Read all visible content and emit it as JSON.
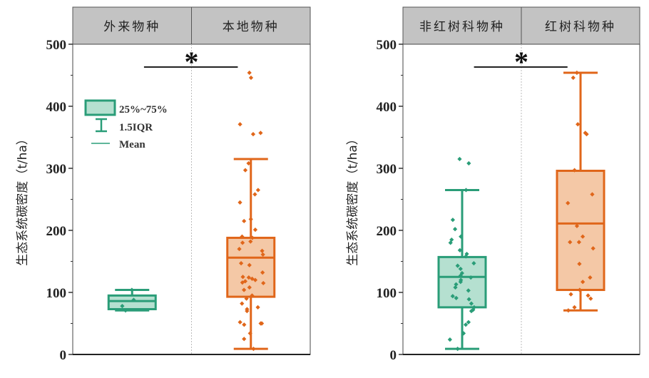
{
  "chart_data": [
    {
      "type": "box",
      "ylabel": "生态系统碳密度（t/ha）",
      "ylim": [
        0,
        500
      ],
      "yticks": [
        "0",
        "100",
        "200",
        "300",
        "400",
        "500"
      ],
      "categories": [
        "外来物种",
        "本地物种"
      ],
      "significance": "*",
      "legend": {
        "box": "25%~75%",
        "whisker": "1.5IQR",
        "mean": "Mean",
        "placement": "top-left"
      },
      "series": [
        {
          "name": "外来物种",
          "color": "#2a9d78",
          "fill": "#b5e0d0",
          "whisker_low": 71,
          "q1": 73,
          "median": 86,
          "q3": 95,
          "whisker_high": 104,
          "points": [
            104,
            88,
            78,
            71
          ]
        },
        {
          "name": "本地物种",
          "color": "#e0661a",
          "fill": "#f4c8a6",
          "whisker_low": 9,
          "q1": 93,
          "median": 156,
          "q3": 188,
          "whisker_high": 315,
          "points": [
            454,
            446,
            371,
            357,
            355,
            308,
            297,
            265,
            258,
            245,
            218,
            215,
            201,
            190,
            188,
            182,
            180,
            170,
            167,
            161,
            147,
            144,
            132,
            125,
            124,
            122,
            120,
            118,
            116,
            115,
            108,
            104,
            95,
            90,
            82,
            76,
            73,
            70,
            52,
            50,
            48,
            50,
            34,
            25,
            9
          ]
        }
      ]
    },
    {
      "type": "box",
      "ylabel": "生态系统碳密度（t/ha）",
      "ylim": [
        0,
        500
      ],
      "yticks": [
        "0",
        "100",
        "200",
        "300",
        "400",
        "500"
      ],
      "categories": [
        "非红树科物种",
        "红树科物种"
      ],
      "significance": "*",
      "series": [
        {
          "name": "非红树科物种",
          "color": "#2a9d78",
          "fill": "#b5e0d0",
          "whisker_low": 9,
          "q1": 76,
          "median": 125,
          "q3": 157,
          "whisker_high": 265,
          "points": [
            315,
            308,
            265,
            217,
            202,
            190,
            185,
            180,
            168,
            162,
            158,
            147,
            143,
            138,
            131,
            127,
            124,
            120,
            117,
            113,
            108,
            103,
            94,
            91,
            89,
            82,
            76,
            72,
            70,
            52,
            48,
            34,
            24,
            9
          ]
        },
        {
          "name": "红树科物种",
          "color": "#e0661a",
          "fill": "#f4c8a6",
          "whisker_low": 71,
          "q1": 104,
          "median": 211,
          "q3": 296,
          "whisker_high": 454,
          "points": [
            454,
            446,
            371,
            357,
            355,
            297,
            258,
            244,
            207,
            190,
            181,
            181,
            171,
            146,
            124,
            117,
            104,
            97,
            95,
            90,
            76,
            71
          ]
        }
      ]
    }
  ]
}
